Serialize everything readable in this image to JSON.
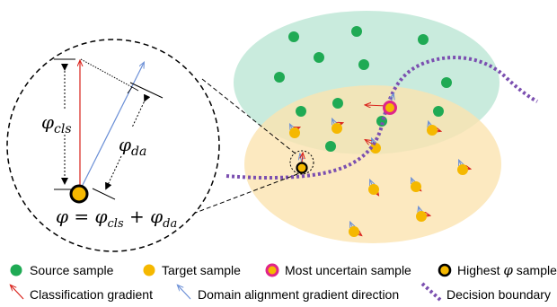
{
  "zoom": {
    "phi_cls": "φ",
    "phi_cls_sub": "cls",
    "phi_da": "φ",
    "phi_da_sub": "da",
    "formula": {
      "phi": "φ",
      "eq": " = ",
      "phi1": "φ",
      "sub1": "cls",
      "plus": " + ",
      "phi2": "φ",
      "sub2": "da"
    }
  },
  "legend": {
    "source": "Source sample",
    "target": "Target sample",
    "uncertain": "Most uncertain sample",
    "highest_pre": "Highest ",
    "highest_phi": "φ",
    "highest_post": " sample",
    "cls_grad": "Classification gradient",
    "da_grad": "Domain alignment gradient direction",
    "boundary": "Decision boundary"
  },
  "colors": {
    "source_region": "#bfe8d7",
    "target_region": "#fbe4b0",
    "source_dot": "#1faa54",
    "target_dot": "#f5b800",
    "uncertain_ring": "#e0248a",
    "cls_arrow": "#d9221b",
    "da_arrow": "#6b8fd6",
    "boundary": "#7b4fb0"
  }
}
